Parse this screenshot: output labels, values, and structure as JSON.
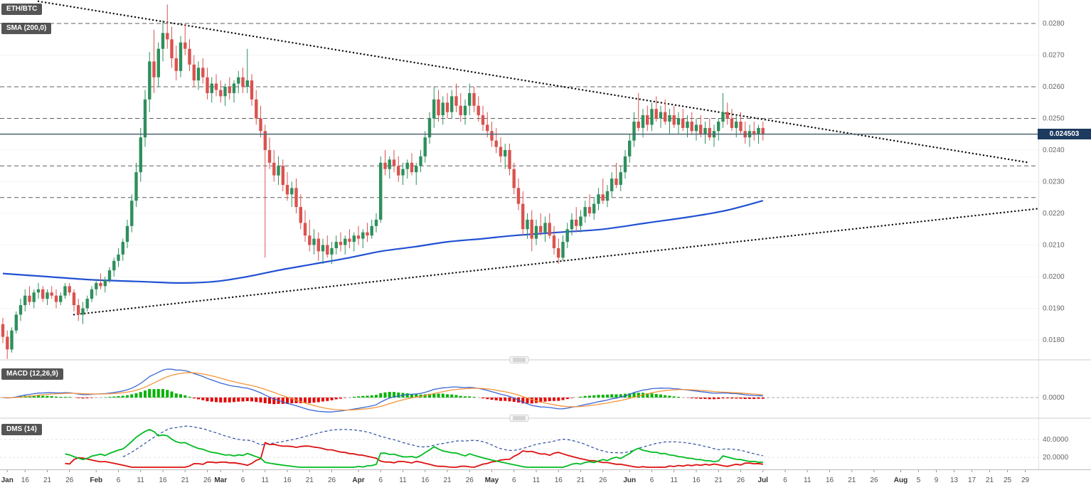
{
  "colors": {
    "candle_up": "#2e8f5d",
    "candle_down": "#d9534f",
    "sma": "#2151d3",
    "macd_line": "#3a66d4",
    "macd_signal": "#f5953a",
    "hist_up": "#00b300",
    "hist_down": "#e60000",
    "plus_di": "#00bb22",
    "minus_di": "#dd1111",
    "adx": "#2d4ea0",
    "trendline": "#111111",
    "level_line": "#5f5f5f",
    "current_price_line": "#4a6572",
    "badge_bg": "#464646",
    "price_tag_bg": "#1d3a5f",
    "axis_text": "#666666"
  },
  "main_chart": {
    "symbol_badge": "ETH/BTC",
    "sma_badge": "SMA (200,0)",
    "price_label": "0.024503"
  },
  "macd_panel": {
    "badge": "MACD (12,26,9)",
    "axis_labels": [
      "0.0000"
    ]
  },
  "dms_panel": {
    "badge": "DMS (14)",
    "axis_labels": [
      "40.0000",
      "20.0000"
    ]
  },
  "chart_data": {
    "type": "candlestick",
    "symbol": "ETH/BTC",
    "current_price": 0.024503,
    "price_axis_labels": [
      "0.0280",
      "0.0270",
      "0.0260",
      "0.0250",
      "0.0240",
      "0.0230",
      "0.0220",
      "0.0210",
      "0.0200",
      "0.0190",
      "0.0180"
    ],
    "levels": [
      0.028,
      0.026,
      0.025,
      0.0235,
      0.0225
    ],
    "trendlines": [
      {
        "name": "descending-resistance-trendline",
        "points": [
          [
            8,
            0.0287
          ],
          [
            231,
            0.0236
          ]
        ]
      },
      {
        "name": "ascending-support-trendline",
        "points": [
          [
            16,
            0.0188
          ],
          [
            233,
            0.02215
          ]
        ]
      }
    ],
    "indicators": {
      "sma": {
        "period": 200,
        "offset": 0
      },
      "macd": {
        "fast": 12,
        "slow": 26,
        "signal": 9
      },
      "dms": {
        "period": 14
      }
    },
    "sma200": [
      [
        0,
        0.0201
      ],
      [
        10,
        0.02
      ],
      [
        20,
        0.0199
      ],
      [
        30,
        0.01985
      ],
      [
        40,
        0.0198
      ],
      [
        48,
        0.01985
      ],
      [
        55,
        0.02
      ],
      [
        62,
        0.0202
      ],
      [
        70,
        0.0204
      ],
      [
        78,
        0.0206
      ],
      [
        85,
        0.0208
      ],
      [
        93,
        0.02095
      ],
      [
        100,
        0.0211
      ],
      [
        108,
        0.0212
      ],
      [
        115,
        0.0213
      ],
      [
        125,
        0.0214
      ],
      [
        135,
        0.0215
      ],
      [
        145,
        0.0217
      ],
      [
        155,
        0.0219
      ],
      [
        163,
        0.0221
      ],
      [
        171,
        0.0224
      ]
    ],
    "time_axis": [
      [
        "Jan",
        1
      ],
      [
        "16",
        5
      ],
      [
        "21",
        10
      ],
      [
        "26",
        15
      ],
      [
        "Feb",
        21
      ],
      [
        "6",
        26
      ],
      [
        "11",
        31
      ],
      [
        "16",
        36
      ],
      [
        "21",
        41
      ],
      [
        "26",
        46
      ],
      [
        "Mar",
        49
      ],
      [
        "6",
        54
      ],
      [
        "11",
        59
      ],
      [
        "16",
        64
      ],
      [
        "21",
        69
      ],
      [
        "26",
        74
      ],
      [
        "Apr",
        80
      ],
      [
        "6",
        85
      ],
      [
        "11",
        90
      ],
      [
        "16",
        95
      ],
      [
        "21",
        100
      ],
      [
        "26",
        105
      ],
      [
        "May",
        110
      ],
      [
        "6",
        115
      ],
      [
        "11",
        120
      ],
      [
        "16",
        125
      ],
      [
        "21",
        130
      ],
      [
        "26",
        135
      ],
      [
        "Jun",
        141
      ],
      [
        "6",
        146
      ],
      [
        "11",
        151
      ],
      [
        "16",
        156
      ],
      [
        "21",
        161
      ],
      [
        "26",
        166
      ],
      [
        "Jul",
        171
      ],
      [
        "6",
        176
      ],
      [
        "11",
        181
      ],
      [
        "16",
        186
      ],
      [
        "21",
        191
      ],
      [
        "26",
        196
      ],
      [
        "Aug",
        202
      ],
      [
        "5",
        206
      ],
      [
        "9",
        210
      ],
      [
        "13",
        214
      ],
      [
        "17",
        218
      ],
      [
        "21",
        222
      ],
      [
        "25",
        226
      ],
      [
        "29",
        230
      ]
    ],
    "candles": [
      [
        0.0185,
        0.0187,
        0.0179,
        0.0181
      ],
      [
        0.0181,
        0.0183,
        0.0174,
        0.0177
      ],
      [
        0.0177,
        0.0184,
        0.0176,
        0.0183
      ],
      [
        0.0183,
        0.0189,
        0.0182,
        0.0188
      ],
      [
        0.0188,
        0.0193,
        0.0186,
        0.0191
      ],
      [
        0.0191,
        0.0196,
        0.0189,
        0.0194
      ],
      [
        0.0194,
        0.0197,
        0.0191,
        0.0192
      ],
      [
        0.0192,
        0.0196,
        0.019,
        0.0195
      ],
      [
        0.0195,
        0.0198,
        0.0193,
        0.0196
      ],
      [
        0.0196,
        0.0197,
        0.0192,
        0.0193
      ],
      [
        0.0193,
        0.0196,
        0.0191,
        0.0195
      ],
      [
        0.0195,
        0.0197,
        0.0193,
        0.0194
      ],
      [
        0.0194,
        0.0196,
        0.019,
        0.0192
      ],
      [
        0.0192,
        0.0195,
        0.0191,
        0.0194
      ],
      [
        0.0194,
        0.0198,
        0.0193,
        0.0197
      ],
      [
        0.0197,
        0.0198,
        0.0194,
        0.0195
      ],
      [
        0.0195,
        0.0196,
        0.0189,
        0.0191
      ],
      [
        0.0191,
        0.0193,
        0.0186,
        0.0188
      ],
      [
        0.0188,
        0.0192,
        0.0185,
        0.019
      ],
      [
        0.019,
        0.0194,
        0.0189,
        0.0193
      ],
      [
        0.0193,
        0.0197,
        0.0192,
        0.0196
      ],
      [
        0.0196,
        0.0199,
        0.0194,
        0.0198
      ],
      [
        0.0198,
        0.0201,
        0.0196,
        0.0197
      ],
      [
        0.0197,
        0.02,
        0.0195,
        0.0199
      ],
      [
        0.0199,
        0.0203,
        0.0198,
        0.0202
      ],
      [
        0.0202,
        0.0206,
        0.02,
        0.0205
      ],
      [
        0.0205,
        0.0209,
        0.0203,
        0.0207
      ],
      [
        0.0207,
        0.0212,
        0.0205,
        0.0211
      ],
      [
        0.0211,
        0.0218,
        0.0209,
        0.0216
      ],
      [
        0.0216,
        0.0226,
        0.0214,
        0.0224
      ],
      [
        0.0224,
        0.0236,
        0.0222,
        0.0233
      ],
      [
        0.0233,
        0.0247,
        0.023,
        0.0244
      ],
      [
        0.0244,
        0.0259,
        0.0241,
        0.0256
      ],
      [
        0.0256,
        0.0271,
        0.0252,
        0.0268
      ],
      [
        0.0268,
        0.0278,
        0.0258,
        0.0263
      ],
      [
        0.0263,
        0.0274,
        0.026,
        0.0272
      ],
      [
        0.0272,
        0.0281,
        0.0268,
        0.0277
      ],
      [
        0.0277,
        0.0286,
        0.0272,
        0.0275
      ],
      [
        0.0275,
        0.0279,
        0.0266,
        0.0269
      ],
      [
        0.0269,
        0.0273,
        0.0262,
        0.0265
      ],
      [
        0.0265,
        0.0276,
        0.0263,
        0.0274
      ],
      [
        0.0274,
        0.028,
        0.027,
        0.0272
      ],
      [
        0.0272,
        0.0275,
        0.0265,
        0.0267
      ],
      [
        0.0267,
        0.027,
        0.026,
        0.0262
      ],
      [
        0.0262,
        0.0268,
        0.0259,
        0.0266
      ],
      [
        0.0266,
        0.0269,
        0.0261,
        0.0263
      ],
      [
        0.0263,
        0.0266,
        0.0256,
        0.0258
      ],
      [
        0.0258,
        0.0263,
        0.0255,
        0.0261
      ],
      [
        0.0261,
        0.0264,
        0.0257,
        0.0259
      ],
      [
        0.0259,
        0.0262,
        0.0255,
        0.0257
      ],
      [
        0.0257,
        0.0261,
        0.0254,
        0.026
      ],
      [
        0.026,
        0.0263,
        0.0256,
        0.0258
      ],
      [
        0.0258,
        0.0262,
        0.0255,
        0.0261
      ],
      [
        0.0261,
        0.0265,
        0.0258,
        0.0263
      ],
      [
        0.0263,
        0.0266,
        0.0258,
        0.026
      ],
      [
        0.026,
        0.0272,
        0.0258,
        0.0262
      ],
      [
        0.0262,
        0.0264,
        0.0254,
        0.0256
      ],
      [
        0.0256,
        0.0259,
        0.0248,
        0.025
      ],
      [
        0.025,
        0.0254,
        0.0244,
        0.0246
      ],
      [
        0.0246,
        0.0248,
        0.0206,
        0.024
      ],
      [
        0.024,
        0.0244,
        0.0234,
        0.0236
      ],
      [
        0.0236,
        0.024,
        0.023,
        0.0232
      ],
      [
        0.0232,
        0.0238,
        0.0229,
        0.0235
      ],
      [
        0.0235,
        0.0237,
        0.0227,
        0.0229
      ],
      [
        0.0229,
        0.0233,
        0.0224,
        0.0226
      ],
      [
        0.0226,
        0.023,
        0.0222,
        0.0228
      ],
      [
        0.0228,
        0.0231,
        0.022,
        0.0222
      ],
      [
        0.0222,
        0.0226,
        0.0215,
        0.0217
      ],
      [
        0.0217,
        0.0221,
        0.0211,
        0.0213
      ],
      [
        0.0213,
        0.0218,
        0.0208,
        0.021
      ],
      [
        0.021,
        0.0215,
        0.0207,
        0.0212
      ],
      [
        0.0212,
        0.0214,
        0.0205,
        0.0208
      ],
      [
        0.0208,
        0.0212,
        0.0204,
        0.021
      ],
      [
        0.021,
        0.0213,
        0.0206,
        0.0207
      ],
      [
        0.0207,
        0.0211,
        0.0204,
        0.0209
      ],
      [
        0.0209,
        0.0213,
        0.0207,
        0.0211
      ],
      [
        0.0211,
        0.0214,
        0.0208,
        0.021
      ],
      [
        0.021,
        0.0213,
        0.0207,
        0.0212
      ],
      [
        0.0212,
        0.0215,
        0.0209,
        0.0211
      ],
      [
        0.0211,
        0.0214,
        0.0208,
        0.0213
      ],
      [
        0.0213,
        0.0216,
        0.021,
        0.0212
      ],
      [
        0.0212,
        0.0215,
        0.0209,
        0.0214
      ],
      [
        0.0214,
        0.0217,
        0.0211,
        0.0213
      ],
      [
        0.0213,
        0.0218,
        0.0212,
        0.0216
      ],
      [
        0.0216,
        0.022,
        0.0214,
        0.0218
      ],
      [
        0.0218,
        0.0238,
        0.0217,
        0.0236
      ],
      [
        0.0236,
        0.024,
        0.0232,
        0.0234
      ],
      [
        0.0234,
        0.0238,
        0.0231,
        0.0237
      ],
      [
        0.0237,
        0.024,
        0.0233,
        0.0235
      ],
      [
        0.0235,
        0.0238,
        0.023,
        0.0232
      ],
      [
        0.0232,
        0.0236,
        0.0229,
        0.0234
      ],
      [
        0.0234,
        0.0237,
        0.0231,
        0.0236
      ],
      [
        0.0236,
        0.0239,
        0.0232,
        0.0233
      ],
      [
        0.0233,
        0.0236,
        0.0229,
        0.0235
      ],
      [
        0.0235,
        0.024,
        0.0233,
        0.0238
      ],
      [
        0.0238,
        0.0246,
        0.0236,
        0.0244
      ],
      [
        0.0244,
        0.0252,
        0.0242,
        0.025
      ],
      [
        0.025,
        0.026,
        0.0247,
        0.0256
      ],
      [
        0.0256,
        0.0259,
        0.0249,
        0.0251
      ],
      [
        0.0251,
        0.0257,
        0.0248,
        0.0255
      ],
      [
        0.0255,
        0.0258,
        0.025,
        0.0252
      ],
      [
        0.0252,
        0.0259,
        0.025,
        0.0257
      ],
      [
        0.0257,
        0.0261,
        0.0252,
        0.0254
      ],
      [
        0.0254,
        0.0258,
        0.0249,
        0.0251
      ],
      [
        0.0251,
        0.0256,
        0.0248,
        0.0254
      ],
      [
        0.0254,
        0.0261,
        0.0251,
        0.0258
      ],
      [
        0.0258,
        0.026,
        0.0252,
        0.0254
      ],
      [
        0.0254,
        0.0257,
        0.0249,
        0.0251
      ],
      [
        0.0251,
        0.0254,
        0.0246,
        0.0248
      ],
      [
        0.0248,
        0.0252,
        0.0244,
        0.0246
      ],
      [
        0.0246,
        0.0249,
        0.0241,
        0.0243
      ],
      [
        0.0243,
        0.0247,
        0.0239,
        0.0241
      ],
      [
        0.0241,
        0.0244,
        0.0236,
        0.0238
      ],
      [
        0.0238,
        0.0242,
        0.0234,
        0.024
      ],
      [
        0.024,
        0.0242,
        0.0232,
        0.0234
      ],
      [
        0.0234,
        0.0236,
        0.0226,
        0.0228
      ],
      [
        0.0228,
        0.0231,
        0.0221,
        0.0223
      ],
      [
        0.0223,
        0.0227,
        0.0213,
        0.0215
      ],
      [
        0.0215,
        0.022,
        0.0212,
        0.0218
      ],
      [
        0.0218,
        0.0221,
        0.0208,
        0.0212
      ],
      [
        0.0212,
        0.0218,
        0.021,
        0.0216
      ],
      [
        0.0216,
        0.022,
        0.0213,
        0.0214
      ],
      [
        0.0214,
        0.0219,
        0.0211,
        0.0217
      ],
      [
        0.0217,
        0.022,
        0.0212,
        0.0213
      ],
      [
        0.0213,
        0.0216,
        0.0207,
        0.0209
      ],
      [
        0.0209,
        0.0212,
        0.0204,
        0.0206
      ],
      [
        0.0206,
        0.0213,
        0.0205,
        0.0211
      ],
      [
        0.0211,
        0.0217,
        0.0209,
        0.0215
      ],
      [
        0.0215,
        0.022,
        0.0213,
        0.0218
      ],
      [
        0.0218,
        0.0222,
        0.0214,
        0.0216
      ],
      [
        0.0216,
        0.0221,
        0.0214,
        0.0219
      ],
      [
        0.0219,
        0.0224,
        0.0217,
        0.0222
      ],
      [
        0.0222,
        0.0226,
        0.0219,
        0.022
      ],
      [
        0.022,
        0.0225,
        0.0218,
        0.0223
      ],
      [
        0.0223,
        0.0228,
        0.0221,
        0.0226
      ],
      [
        0.0226,
        0.0231,
        0.0223,
        0.0224
      ],
      [
        0.0224,
        0.0229,
        0.0222,
        0.0227
      ],
      [
        0.0227,
        0.0233,
        0.0225,
        0.0231
      ],
      [
        0.0231,
        0.0236,
        0.0228,
        0.0229
      ],
      [
        0.0229,
        0.0235,
        0.0227,
        0.0233
      ],
      [
        0.0233,
        0.024,
        0.0231,
        0.0238
      ],
      [
        0.0238,
        0.0245,
        0.0236,
        0.0243
      ],
      [
        0.0243,
        0.0252,
        0.0241,
        0.0249
      ],
      [
        0.0249,
        0.0258,
        0.0246,
        0.0247
      ],
      [
        0.0247,
        0.0253,
        0.0244,
        0.0251
      ],
      [
        0.0251,
        0.0254,
        0.0246,
        0.0248
      ],
      [
        0.0248,
        0.0255,
        0.0246,
        0.0253
      ],
      [
        0.0253,
        0.0257,
        0.0249,
        0.025
      ],
      [
        0.025,
        0.0254,
        0.0247,
        0.0252
      ],
      [
        0.0252,
        0.0256,
        0.0248,
        0.0249
      ],
      [
        0.0249,
        0.0253,
        0.0245,
        0.0251
      ],
      [
        0.0251,
        0.0254,
        0.0247,
        0.0248
      ],
      [
        0.0248,
        0.0252,
        0.0245,
        0.025
      ],
      [
        0.025,
        0.0253,
        0.0246,
        0.0247
      ],
      [
        0.0247,
        0.0251,
        0.0244,
        0.0249
      ],
      [
        0.0249,
        0.0252,
        0.0245,
        0.0246
      ],
      [
        0.0246,
        0.025,
        0.0243,
        0.0248
      ],
      [
        0.0248,
        0.0251,
        0.0244,
        0.0245
      ],
      [
        0.0245,
        0.0249,
        0.0242,
        0.0247
      ],
      [
        0.0247,
        0.025,
        0.0243,
        0.0244
      ],
      [
        0.0244,
        0.0248,
        0.0241,
        0.0246
      ],
      [
        0.0246,
        0.025,
        0.0243,
        0.0249
      ],
      [
        0.0249,
        0.0258,
        0.0247,
        0.0252
      ],
      [
        0.0252,
        0.0255,
        0.0248,
        0.025
      ],
      [
        0.025,
        0.0253,
        0.0246,
        0.0247
      ],
      [
        0.0247,
        0.0251,
        0.0244,
        0.0249
      ],
      [
        0.0249,
        0.0252,
        0.0245,
        0.0246
      ],
      [
        0.0246,
        0.0249,
        0.0242,
        0.0244
      ],
      [
        0.0244,
        0.0248,
        0.0241,
        0.0246
      ],
      [
        0.0246,
        0.0249,
        0.0243,
        0.0245
      ],
      [
        0.0245,
        0.0248,
        0.0242,
        0.0247
      ],
      [
        0.0247,
        0.0249,
        0.0243,
        0.024503
      ]
    ]
  }
}
